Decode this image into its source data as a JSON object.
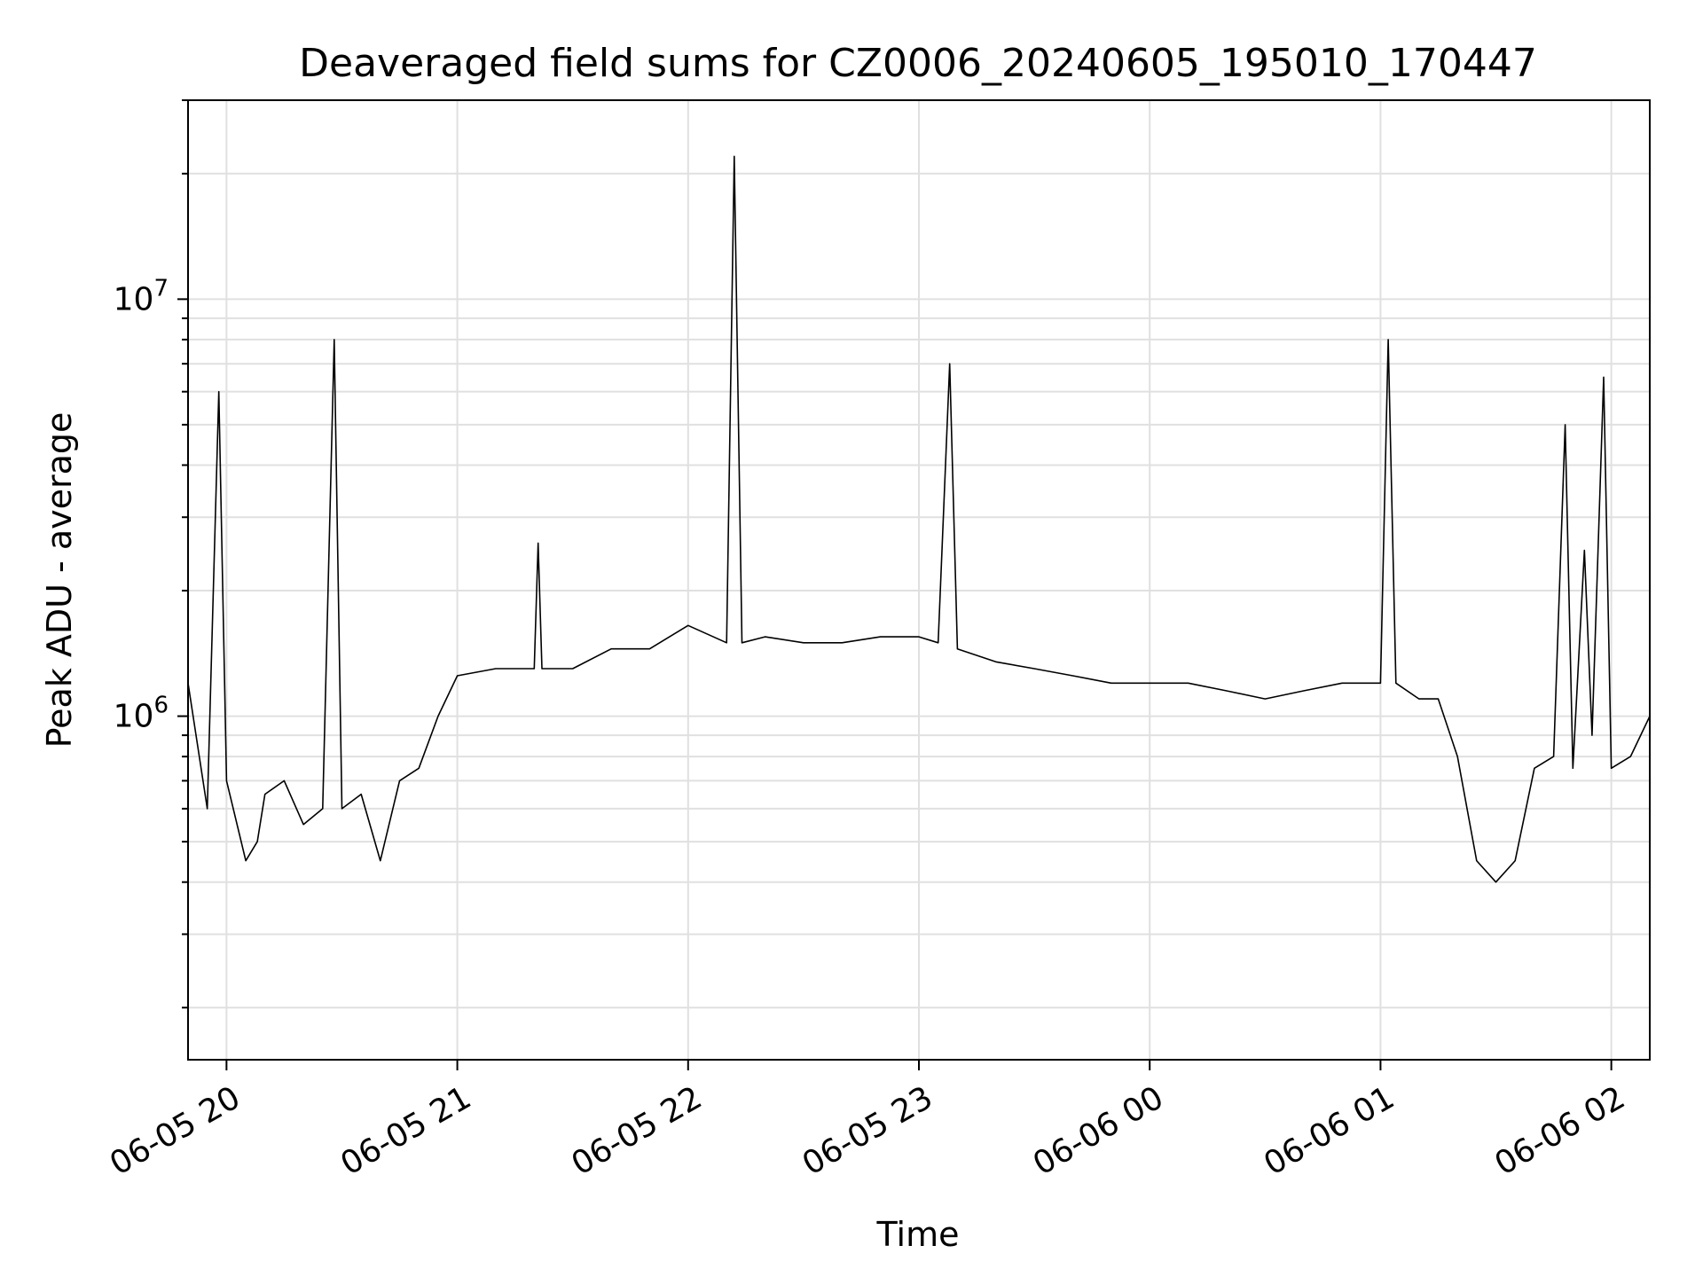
{
  "chart_data": {
    "type": "line",
    "title": "Deaveraged field sums for CZ0006_20240605_195010_170447",
    "xlabel": "Time",
    "ylabel": "Peak ADU - average",
    "yscale": "log",
    "grid": true,
    "legend": "none",
    "colors": {
      "line": "#000000",
      "grid": "#e0e0e0",
      "frame": "#000000"
    },
    "xlim": [
      "06-05 19:50",
      "06-06 02:10"
    ],
    "ylim": [
      150000,
      30000000
    ],
    "x_ticks": [
      "06-05 20",
      "06-05 21",
      "06-05 22",
      "06-05 23",
      "06-06 00",
      "06-06 01",
      "06-06 02"
    ],
    "y_ticks": [
      {
        "base": "10",
        "exp": "6",
        "value": 1000000
      },
      {
        "base": "10",
        "exp": "7",
        "value": 10000000
      }
    ],
    "series": [
      {
        "x": [
          "06-05 19:50",
          "06-05 19:55",
          "06-05 19:58",
          "06-05 20:00",
          "06-05 20:05",
          "06-05 20:08",
          "06-05 20:10",
          "06-05 20:15",
          "06-05 20:20",
          "06-05 20:25",
          "06-05 20:28",
          "06-05 20:30",
          "06-05 20:35",
          "06-05 20:40",
          "06-05 20:45",
          "06-05 20:50",
          "06-05 20:55",
          "06-05 21:00",
          "06-05 21:10",
          "06-05 21:20",
          "06-05 21:21",
          "06-05 21:22",
          "06-05 21:30",
          "06-05 21:40",
          "06-05 21:50",
          "06-05 22:00",
          "06-05 22:10",
          "06-05 22:12",
          "06-05 22:14",
          "06-05 22:20",
          "06-05 22:30",
          "06-05 22:40",
          "06-05 22:50",
          "06-05 23:00",
          "06-05 23:05",
          "06-05 23:08",
          "06-05 23:10",
          "06-05 23:20",
          "06-05 23:30",
          "06-05 23:40",
          "06-05 23:50",
          "06-06 00:00",
          "06-06 00:10",
          "06-06 00:20",
          "06-06 00:30",
          "06-06 00:40",
          "06-06 00:50",
          "06-06 01:00",
          "06-06 01:02",
          "06-06 01:04",
          "06-06 01:10",
          "06-06 01:15",
          "06-06 01:20",
          "06-06 01:25",
          "06-06 01:30",
          "06-06 01:35",
          "06-06 01:40",
          "06-06 01:45",
          "06-06 01:48",
          "06-06 01:50",
          "06-06 01:53",
          "06-06 01:55",
          "06-06 01:58",
          "06-06 02:00",
          "06-06 02:05",
          "06-06 02:10"
        ],
        "y": [
          1200000,
          600000,
          6000000,
          700000,
          450000,
          500000,
          650000,
          700000,
          550000,
          600000,
          8000000,
          600000,
          650000,
          450000,
          700000,
          750000,
          1000000,
          1250000,
          1300000,
          1300000,
          2600000,
          1300000,
          1300000,
          1450000,
          1450000,
          1650000,
          1500000,
          22000000,
          1500000,
          1550000,
          1500000,
          1500000,
          1550000,
          1550000,
          1500000,
          7000000,
          1450000,
          1350000,
          1300000,
          1250000,
          1200000,
          1200000,
          1200000,
          1150000,
          1100000,
          1150000,
          1200000,
          1200000,
          8000000,
          1200000,
          1100000,
          1100000,
          800000,
          450000,
          400000,
          450000,
          750000,
          800000,
          5000000,
          750000,
          2500000,
          900000,
          6500000,
          750000,
          800000,
          1000000
        ]
      }
    ]
  }
}
